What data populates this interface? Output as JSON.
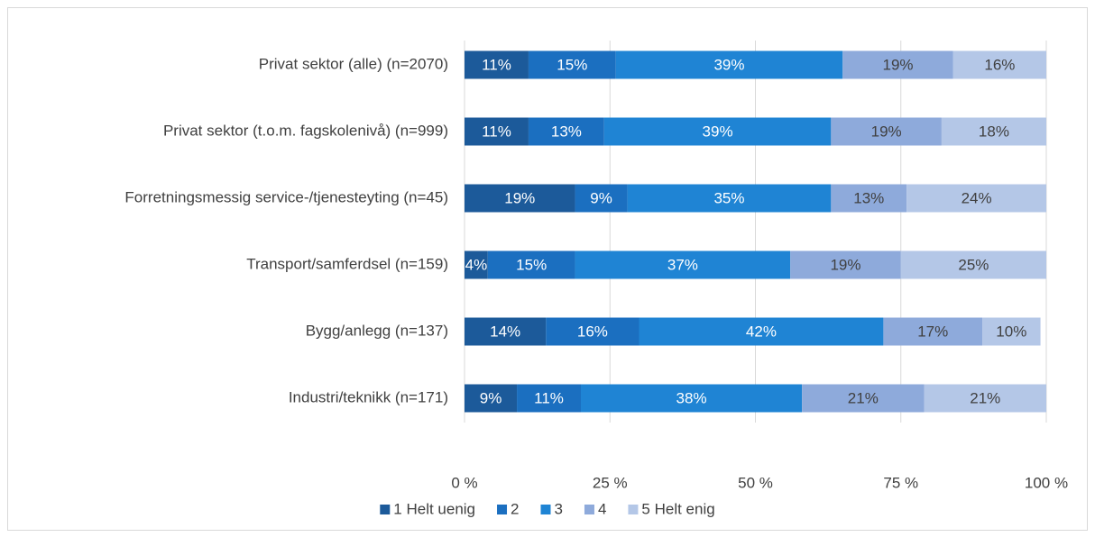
{
  "chart_data": {
    "type": "stacked_barh",
    "categories": [
      "Privat sektor (alle) (n=2070)",
      "Privat sektor (t.o.m. fagskolenivå) (n=999)",
      "Forretningsmessig service-/tjenesteyting (n=45)",
      "Transport/samferdsel (n=159)",
      "Bygg/anlegg (n=137)",
      "Industri/teknikk (n=171)"
    ],
    "series": [
      {
        "name": "1 Helt uenig",
        "color": "#1c5a9a",
        "label_color": "#ffffff",
        "values": [
          11,
          11,
          19,
          4,
          14,
          9
        ],
        "value_labels": [
          "11%",
          "11%",
          "19%",
          "4%",
          "14%",
          "9%"
        ]
      },
      {
        "name": "2",
        "color": "#1b6fc0",
        "label_color": "#ffffff",
        "values": [
          15,
          13,
          9,
          15,
          16,
          11
        ],
        "value_labels": [
          "15%",
          "13%",
          "9%",
          "15%",
          "16%",
          "11%"
        ]
      },
      {
        "name": "3",
        "color": "#1f84d4",
        "label_color": "#ffffff",
        "values": [
          39,
          39,
          35,
          37,
          42,
          38
        ],
        "value_labels": [
          "39%",
          "39%",
          "35%",
          "37%",
          "42%",
          "38%"
        ]
      },
      {
        "name": "4",
        "color": "#8eaadb",
        "label_color": "#404040",
        "values": [
          19,
          19,
          13,
          19,
          17,
          21
        ],
        "value_labels": [
          "19%",
          "19%",
          "13%",
          "19%",
          "17%",
          "21%"
        ]
      },
      {
        "name": "5 Helt enig",
        "color": "#b4c7e7",
        "label_color": "#404040",
        "values": [
          16,
          18,
          24,
          25,
          10,
          21
        ],
        "value_labels": [
          "16%",
          "18%",
          "24%",
          "25%",
          "10%",
          "21%"
        ]
      }
    ],
    "xlim": [
      0,
      100
    ],
    "xticks": [
      {
        "value": 0,
        "label": "0 %"
      },
      {
        "value": 25,
        "label": "25 %"
      },
      {
        "value": 50,
        "label": "50 %"
      },
      {
        "value": 75,
        "label": "75 %"
      },
      {
        "value": 100,
        "label": "100 %"
      }
    ],
    "grid": true,
    "legend": "bottom"
  }
}
